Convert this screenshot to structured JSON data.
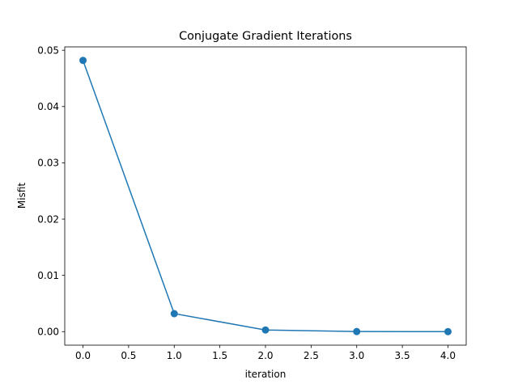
{
  "chart_data": {
    "type": "line",
    "title": "Conjugate Gradient Iterations",
    "xlabel": "iteration",
    "ylabel": "Misfit",
    "x": [
      0,
      1,
      2,
      3,
      4
    ],
    "series": [
      {
        "values": [
          0.0482,
          0.0032,
          0.0003,
          2e-05,
          0.0
        ]
      }
    ],
    "xlim": [
      -0.2,
      4.2
    ],
    "ylim": [
      -0.0024,
      0.0506
    ],
    "xticks": [
      0.0,
      0.5,
      1.0,
      1.5,
      2.0,
      2.5,
      3.0,
      3.5,
      4.0
    ],
    "xtick_labels": [
      "0.0",
      "0.5",
      "1.0",
      "1.5",
      "2.0",
      "2.5",
      "3.0",
      "3.5",
      "4.0"
    ],
    "yticks": [
      0.0,
      0.01,
      0.02,
      0.03,
      0.04,
      0.05
    ],
    "ytick_labels": [
      "0.00",
      "0.01",
      "0.02",
      "0.03",
      "0.04",
      "0.05"
    ],
    "marker": "circle",
    "grid": false,
    "legend": false,
    "color": "#1f77b4"
  }
}
